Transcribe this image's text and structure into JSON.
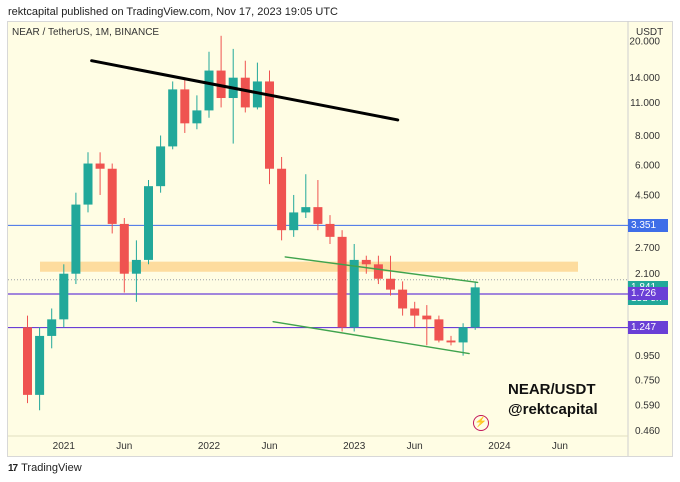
{
  "header": {
    "publisher_line": "rektcapital published on TradingView.com, Nov 17, 2023 19:05 UTC"
  },
  "legend": {
    "symbol": "NEAR / TetherUS, 1M, BINANCE"
  },
  "footer": {
    "brand": "TradingView"
  },
  "watermark": {
    "pair": "NEAR/USDT",
    "handle": "@rektcapital"
  },
  "colors": {
    "bull": "#22a89a",
    "bear": "#ef5350",
    "bg": "#fffde4",
    "zone": "#fdd692",
    "blue_line": "#3f6ee8",
    "purple_line": "#6a3fd6",
    "trend": "#3fa34d"
  },
  "chart_data": {
    "type": "candlestick",
    "title": "NEAR / TetherUS, 1M, BINANCE",
    "y_scale": "log",
    "ylim": [
      0.42,
      24
    ],
    "y_unit": "USDT",
    "y_ticks": [
      "20.000",
      "14.000",
      "11.000",
      "8.000",
      "6.000",
      "4.500",
      "2.700",
      "2.100",
      "0.950",
      "0.750",
      "0.590",
      "0.460"
    ],
    "y_tick_values": [
      20,
      14,
      11,
      8,
      6,
      4.5,
      2.7,
      2.1,
      0.95,
      0.75,
      0.59,
      0.46
    ],
    "x_ticks": [
      {
        "label": "2021",
        "i": 3
      },
      {
        "label": "Jun",
        "i": 8
      },
      {
        "label": "2022",
        "i": 15
      },
      {
        "label": "Jun",
        "i": 20
      },
      {
        "label": "2023",
        "i": 27
      },
      {
        "label": "Jun",
        "i": 32
      },
      {
        "label": "2024",
        "i": 39
      },
      {
        "label": "Jun",
        "i": 44
      }
    ],
    "first_month": "2020-10",
    "candles": [
      {
        "o": 1.25,
        "h": 1.4,
        "l": 0.6,
        "c": 0.65
      },
      {
        "o": 0.65,
        "h": 1.25,
        "l": 0.56,
        "c": 1.15
      },
      {
        "o": 1.15,
        "h": 1.5,
        "l": 1.02,
        "c": 1.35
      },
      {
        "o": 1.35,
        "h": 2.3,
        "l": 1.25,
        "c": 2.1
      },
      {
        "o": 2.1,
        "h": 4.6,
        "l": 1.9,
        "c": 4.1
      },
      {
        "o": 4.1,
        "h": 6.8,
        "l": 3.8,
        "c": 6.1
      },
      {
        "o": 6.1,
        "h": 6.8,
        "l": 4.5,
        "c": 5.8
      },
      {
        "o": 5.8,
        "h": 6.1,
        "l": 3.1,
        "c": 3.4
      },
      {
        "o": 3.4,
        "h": 3.6,
        "l": 1.75,
        "c": 2.1
      },
      {
        "o": 2.1,
        "h": 2.9,
        "l": 1.6,
        "c": 2.4
      },
      {
        "o": 2.4,
        "h": 5.2,
        "l": 2.3,
        "c": 4.9
      },
      {
        "o": 4.9,
        "h": 8.0,
        "l": 4.6,
        "c": 7.2
      },
      {
        "o": 7.2,
        "h": 13.5,
        "l": 7.0,
        "c": 12.5
      },
      {
        "o": 12.5,
        "h": 13.8,
        "l": 8.2,
        "c": 9.0
      },
      {
        "o": 9.0,
        "h": 11.8,
        "l": 8.5,
        "c": 10.2
      },
      {
        "o": 10.2,
        "h": 18.0,
        "l": 9.5,
        "c": 15.0
      },
      {
        "o": 15.0,
        "h": 21.0,
        "l": 10.5,
        "c": 11.5
      },
      {
        "o": 11.5,
        "h": 18.5,
        "l": 7.4,
        "c": 14.0
      },
      {
        "o": 14.0,
        "h": 16.5,
        "l": 10.0,
        "c": 10.5
      },
      {
        "o": 10.5,
        "h": 16.2,
        "l": 10.3,
        "c": 13.5
      },
      {
        "o": 13.5,
        "h": 15.0,
        "l": 5.0,
        "c": 5.8
      },
      {
        "o": 5.8,
        "h": 6.5,
        "l": 2.9,
        "c": 3.2
      },
      {
        "o": 3.2,
        "h": 4.5,
        "l": 3.0,
        "c": 3.8
      },
      {
        "o": 3.8,
        "h": 5.5,
        "l": 3.6,
        "c": 4.0
      },
      {
        "o": 4.0,
        "h": 5.2,
        "l": 3.2,
        "c": 3.4
      },
      {
        "o": 3.4,
        "h": 3.7,
        "l": 2.8,
        "c": 3.0
      },
      {
        "o": 3.0,
        "h": 3.2,
        "l": 1.2,
        "c": 1.25
      },
      {
        "o": 1.25,
        "h": 2.8,
        "l": 1.2,
        "c": 2.4
      },
      {
        "o": 2.4,
        "h": 2.5,
        "l": 2.1,
        "c": 2.3
      },
      {
        "o": 2.3,
        "h": 2.5,
        "l": 1.9,
        "c": 2.0
      },
      {
        "o": 2.0,
        "h": 2.5,
        "l": 1.7,
        "c": 1.8
      },
      {
        "o": 1.8,
        "h": 1.95,
        "l": 1.4,
        "c": 1.5
      },
      {
        "o": 1.5,
        "h": 1.6,
        "l": 1.25,
        "c": 1.4
      },
      {
        "o": 1.4,
        "h": 1.55,
        "l": 1.05,
        "c": 1.35
      },
      {
        "o": 1.35,
        "h": 1.4,
        "l": 1.08,
        "c": 1.1
      },
      {
        "o": 1.1,
        "h": 1.15,
        "l": 1.05,
        "c": 1.08
      },
      {
        "o": 1.08,
        "h": 1.3,
        "l": 0.95,
        "c": 1.25
      },
      {
        "o": 1.25,
        "h": 1.95,
        "l": 1.22,
        "c": 1.84
      }
    ],
    "lines": {
      "resistance_blue": 3.351,
      "purple_top": 1.726,
      "purple_bottom": 1.247,
      "dotted_current": 1.98,
      "zone": [
        2.14,
        2.36
      ]
    },
    "trendlines": [
      {
        "name": "black-downtrend",
        "from": {
          "i": 5.3,
          "v": 16.5
        },
        "to": {
          "i": 30.6,
          "v": 9.3
        }
      },
      {
        "name": "green-upper",
        "from": {
          "i": 21.3,
          "v": 2.47
        },
        "to": {
          "i": 37.2,
          "v": 1.93
        }
      },
      {
        "name": "green-lower",
        "from": {
          "i": 20.3,
          "v": 1.32
        },
        "to": {
          "i": 36.5,
          "v": 0.97
        }
      }
    ],
    "price_labels": [
      {
        "text": "3.351",
        "v": 3.351,
        "color": "#3f6ee8"
      },
      {
        "text": "1.841",
        "sub": "13d 5h",
        "v": 1.84,
        "color": "#22a89a"
      },
      {
        "text": "1.726",
        "v": 1.726,
        "color": "#6a3fd6"
      },
      {
        "text": "1.247",
        "v": 1.247,
        "color": "#6a3fd6"
      }
    ]
  }
}
